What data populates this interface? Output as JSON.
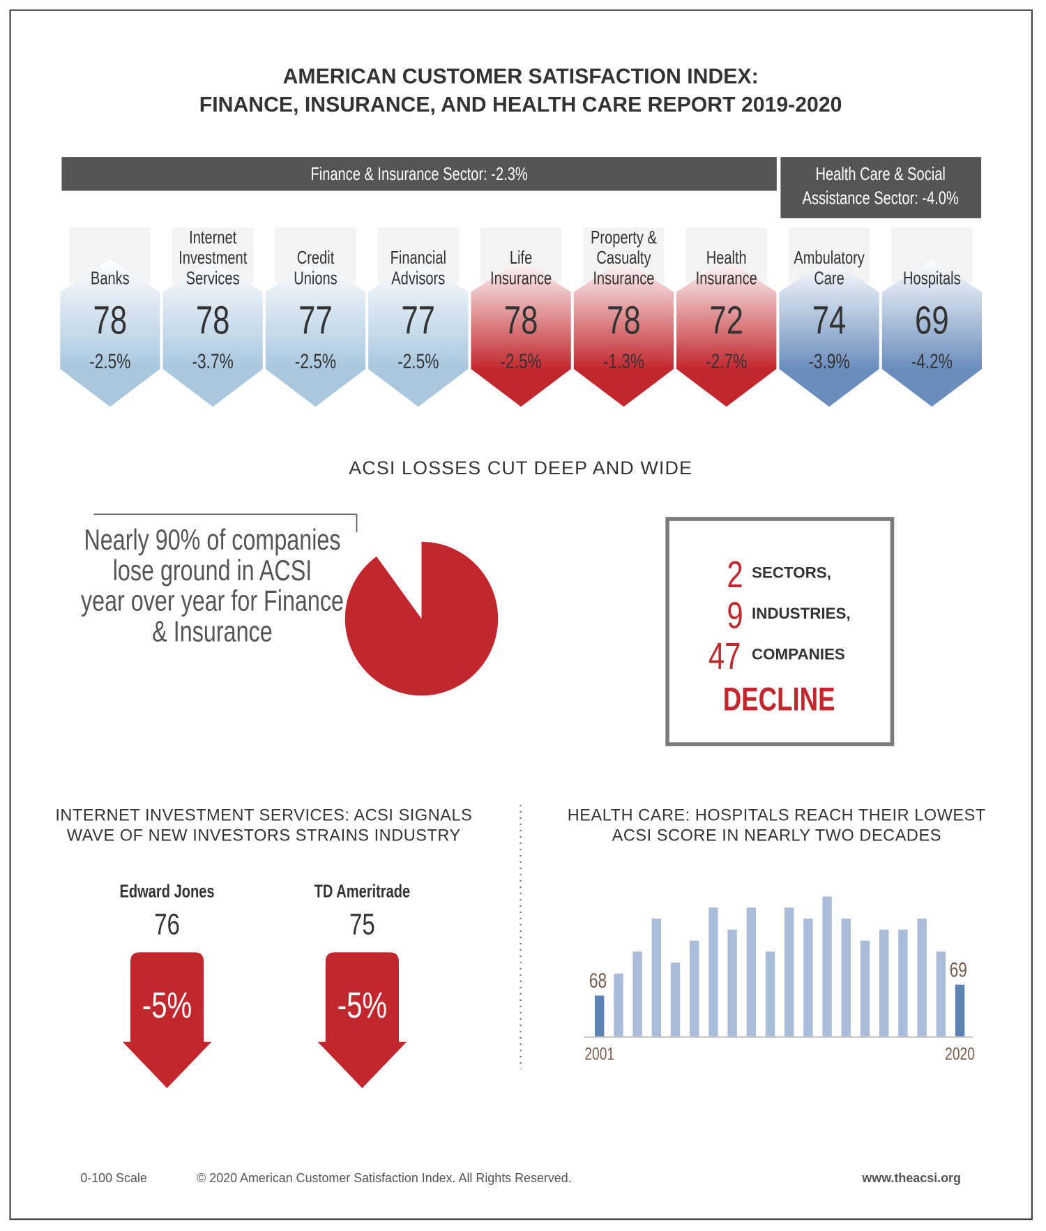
{
  "header": {
    "title": [
      "AMERICAN CUSTOMER SATISFACTION INDEX:",
      "FINANCE, INSURANCE, AND HEALTH CARE REPORT 2019-2020"
    ]
  },
  "sectors": [
    {
      "label": [
        "Finance & Insurance Sector: -2.3%"
      ]
    },
    {
      "label": [
        "Health Care & Social",
        "Assistance Sector: -4.0%"
      ]
    }
  ],
  "industries": [
    {
      "name": [
        "Banks"
      ],
      "score": 78,
      "change": "-2.5%",
      "color": "#a9c7df"
    },
    {
      "name": [
        "Internet",
        "Investment",
        "Services"
      ],
      "score": 78,
      "change": "-3.7%",
      "color": "#a9c7df"
    },
    {
      "name": [
        "Credit",
        "Unions"
      ],
      "score": 77,
      "change": "-2.5%",
      "color": "#a9c7df"
    },
    {
      "name": [
        "Financial",
        "Advisors"
      ],
      "score": 77,
      "change": "-2.5%",
      "color": "#a9c7df"
    },
    {
      "name": [
        "Life",
        "Insurance"
      ],
      "score": 78,
      "change": "-2.5%",
      "color": "#c1272d"
    },
    {
      "name": [
        "Property &",
        "Casualty",
        "Insurance"
      ],
      "score": 78,
      "change": "-1.3%",
      "color": "#c1272d"
    },
    {
      "name": [
        "Health",
        "Insurance"
      ],
      "score": 72,
      "change": "-2.7%",
      "color": "#c1272d"
    },
    {
      "name": [
        "Ambulatory",
        "Care"
      ],
      "score": 74,
      "change": "-3.9%",
      "color": "#6a8dbd"
    },
    {
      "name": [
        "Hospitals"
      ],
      "score": 69,
      "change": "-4.2%",
      "color": "#6a8dbd"
    }
  ],
  "losses": {
    "heading": "ACSI LOSSES CUT DEEP AND WIDE",
    "statement": [
      "Nearly 90% of companies",
      "lose ground  in ACSI",
      "year over year for Finance",
      "& Insurance"
    ],
    "decline": {
      "items": [
        {
          "number": 2,
          "label": "SECTORS,"
        },
        {
          "number": 9,
          "label": "INDUSTRIES,"
        },
        {
          "number": 47,
          "label": "COMPANIES"
        }
      ],
      "word": "DECLINE"
    }
  },
  "internet": {
    "heading": [
      "INTERNET INVESTMENT SERVICES: ACSI SIGNALS",
      "WAVE OF NEW INVESTORS STRAINS INDUSTRY"
    ],
    "companies": [
      {
        "name": "Edward Jones",
        "score": 76,
        "change": "-5%"
      },
      {
        "name": "TD Ameritrade",
        "score": 75,
        "change": "-5%"
      }
    ]
  },
  "health": {
    "heading": [
      "HEALTH CARE: HOSPITALS REACH THEIR LOWEST",
      "ACSI SCORE IN NEARLY TWO DECADES"
    ]
  },
  "chart_data": [
    {
      "type": "pie",
      "values": [
        90,
        10
      ],
      "colors": [
        "#c1272d",
        "#ffffff"
      ]
    },
    {
      "type": "bar",
      "categories": [
        "2001",
        null,
        null,
        null,
        null,
        null,
        null,
        null,
        null,
        null,
        null,
        null,
        null,
        null,
        null,
        null,
        null,
        null,
        null,
        "2020"
      ],
      "values": [
        68,
        70,
        72,
        75,
        71,
        73,
        76,
        74,
        76,
        72,
        76,
        75,
        77,
        75,
        73,
        74,
        74,
        75,
        72,
        69
      ],
      "color": "#a9bcd9",
      "highlight_color": "#5d83b5",
      "ylim": [
        64.3,
        78
      ]
    }
  ],
  "footer": {
    "scale": "0-100 Scale",
    "copyright": "© 2020 American Customer Satisfaction Index. All Rights Reserved.",
    "url": "www.theacsi.org"
  }
}
